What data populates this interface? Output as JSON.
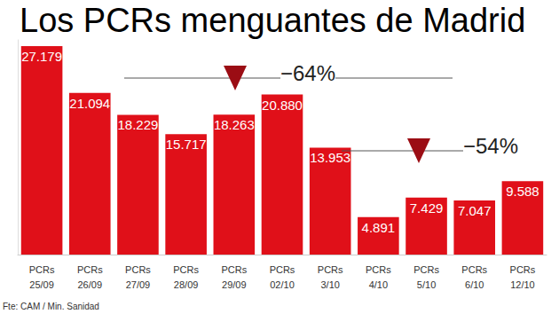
{
  "chart_data": {
    "type": "bar",
    "title": "Los PCRs menguantes de Madrid",
    "categories": [
      "PCRs\n25/09",
      "PCRs\n26/09",
      "PCRs\n27/09",
      "PCRs\n28/09",
      "PCRs\n29/09",
      "PCRs\n02/10",
      "PCRs\n3/10",
      "PCRs\n4/10",
      "PCRs\n5/10",
      "PCRs\n6/10",
      "PCRs\n12/10"
    ],
    "values": [
      27179,
      21094,
      18229,
      15717,
      18263,
      20880,
      13953,
      4891,
      7429,
      7047,
      9588
    ],
    "value_labels": [
      "27.179",
      "21.094",
      "18.229",
      "15.717",
      "18.263",
      "20.880",
      "13.953",
      "4.891",
      "7.429",
      "7.047",
      "9.588"
    ],
    "data_labels": true,
    "color": "#e01019",
    "ylim": [
      0,
      28000
    ],
    "tick_labels": "x",
    "grid": false,
    "annotations": [
      "−64%",
      "−54%"
    ],
    "source": "Fte: CAM / Min. Sanidad"
  }
}
